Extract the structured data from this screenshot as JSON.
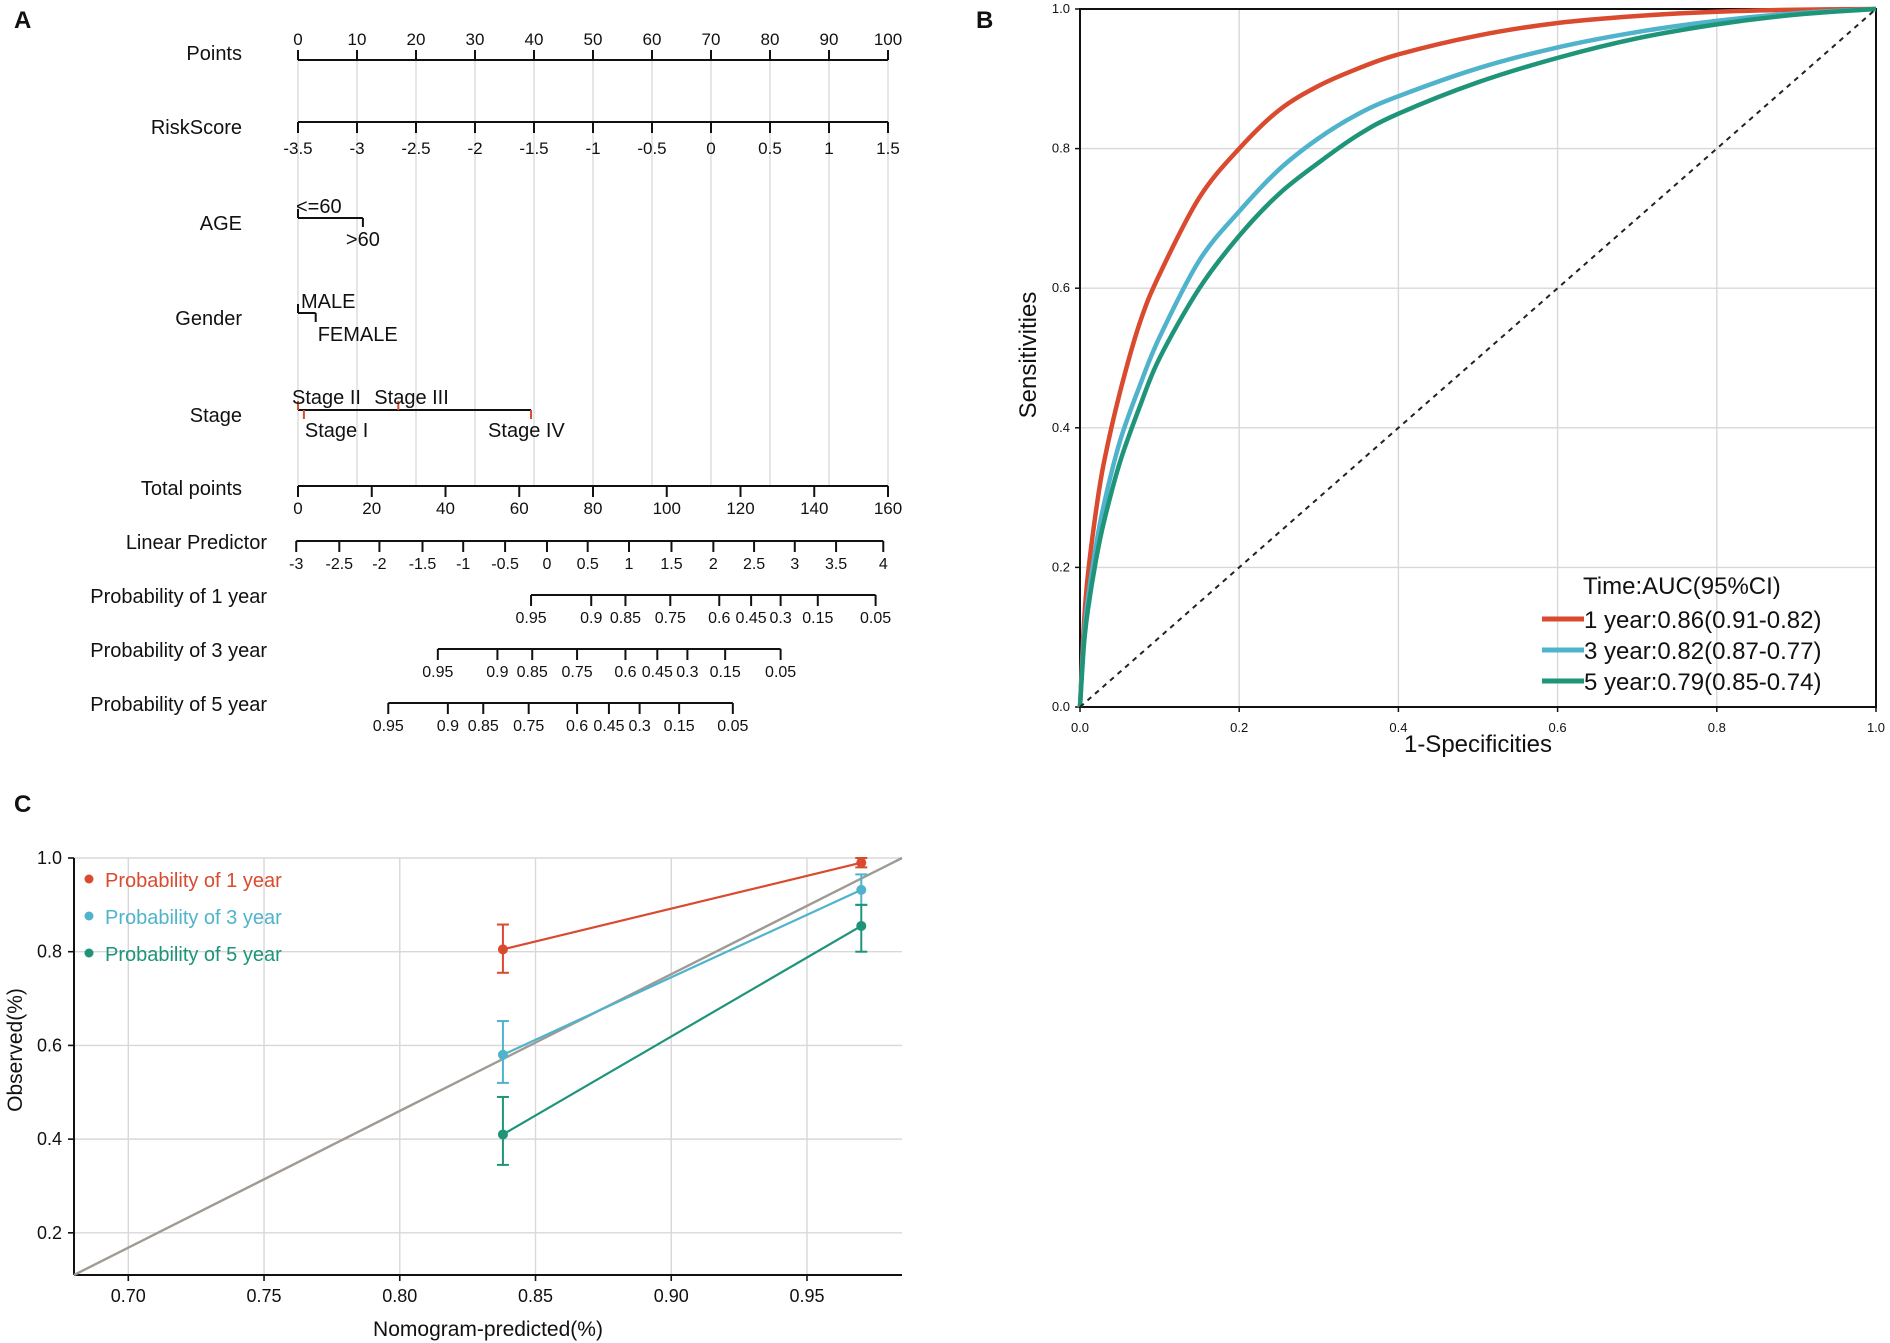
{
  "panel_letters": {
    "a": "A",
    "b": "B",
    "c": "C"
  },
  "colors": {
    "red": "#d94a2f",
    "blue": "#4fb3cc",
    "green": "#1e9479",
    "diag": "#a09a95",
    "grid": "#d8d8d8",
    "axis": "#111111"
  },
  "chart_data": [
    {
      "type": "nomogram",
      "panel": "A",
      "rows": [
        {
          "label": "Points",
          "ticks": [
            {
              "value": 0,
              "text": "0"
            },
            {
              "value": 10,
              "text": "10"
            },
            {
              "value": 20,
              "text": "20"
            },
            {
              "value": 30,
              "text": "30"
            },
            {
              "value": 40,
              "text": "40"
            },
            {
              "value": 50,
              "text": "50"
            },
            {
              "value": 60,
              "text": "60"
            },
            {
              "value": 70,
              "text": "70"
            },
            {
              "value": 80,
              "text": "80"
            },
            {
              "value": 90,
              "text": "90"
            },
            {
              "value": 100,
              "text": "100"
            }
          ]
        },
        {
          "label": "RiskScore",
          "ticks": [
            {
              "points": 0,
              "text": "-3.5"
            },
            {
              "points": 10,
              "text": "-3"
            },
            {
              "points": 20,
              "text": "-2.5"
            },
            {
              "points": 30,
              "text": "-2"
            },
            {
              "points": 40,
              "text": "-1.5"
            },
            {
              "points": 50,
              "text": "-1"
            },
            {
              "points": 60,
              "text": "-0.5"
            },
            {
              "points": 70,
              "text": "0"
            },
            {
              "points": 80,
              "text": "0.5"
            },
            {
              "points": 90,
              "text": "1"
            },
            {
              "points": 100,
              "text": "1.5"
            }
          ]
        },
        {
          "label": "AGE",
          "levels": [
            {
              "text": "<=60",
              "points": 0
            },
            {
              "text": ">60",
              "points": 11
            }
          ]
        },
        {
          "label": "Gender",
          "levels": [
            {
              "text": "MALE",
              "points": 0
            },
            {
              "text": "FEMALE",
              "points": 3
            }
          ]
        },
        {
          "label": "Stage",
          "levels": [
            {
              "text": "Stage II",
              "points": 0
            },
            {
              "text": "Stage I",
              "points": 1
            },
            {
              "text": "Stage III",
              "points": 17
            },
            {
              "text": "Stage IV",
              "points": 39.5
            }
          ]
        },
        {
          "label": "Total points",
          "ticks": [
            {
              "value": 0,
              "text": "0"
            },
            {
              "value": 20,
              "text": "20"
            },
            {
              "value": 40,
              "text": "40"
            },
            {
              "value": 60,
              "text": "60"
            },
            {
              "value": 80,
              "text": "80"
            },
            {
              "value": 100,
              "text": "100"
            },
            {
              "value": 120,
              "text": "120"
            },
            {
              "value": 140,
              "text": "140"
            },
            {
              "value": 160,
              "text": "160"
            }
          ]
        },
        {
          "label": "Linear Predictor",
          "ticks": [
            {
              "points": -0.3,
              "text": "-3"
            },
            {
              "points": 7.0,
              "text": "-2.5"
            },
            {
              "points": 13.8,
              "text": "-2"
            },
            {
              "points": 21.1,
              "text": "-1.5"
            },
            {
              "points": 28.0,
              "text": "-1"
            },
            {
              "points": 35.1,
              "text": "-0.5"
            },
            {
              "points": 42.2,
              "text": "0"
            },
            {
              "points": 49.1,
              "text": "0.5"
            },
            {
              "points": 56.1,
              "text": "1"
            },
            {
              "points": 63.3,
              "text": "1.5"
            },
            {
              "points": 70.4,
              "text": "2"
            },
            {
              "points": 77.3,
              "text": "2.5"
            },
            {
              "points": 84.2,
              "text": "3"
            },
            {
              "points": 91.2,
              "text": "3.5"
            },
            {
              "points": 99.2,
              "text": "4"
            }
          ]
        },
        {
          "label": "Probability of 1 year",
          "ticks": [
            {
              "points": 39.5,
              "text": "0.95"
            },
            {
              "points": 49.7,
              "text": "0.9"
            },
            {
              "points": 55.5,
              "text": "0.85"
            },
            {
              "points": 63.1,
              "text": "0.75"
            },
            {
              "points": 71.4,
              "text": "0.6"
            },
            {
              "points": 76.8,
              "text": "0.45"
            },
            {
              "points": 81.8,
              "text": "0.3"
            },
            {
              "points": 88.1,
              "text": "0.15"
            },
            {
              "points": 97.9,
              "text": "0.05"
            }
          ]
        },
        {
          "label": "Probability of 3 year",
          "ticks": [
            {
              "points": 23.7,
              "text": "0.95"
            },
            {
              "points": 33.8,
              "text": "0.9"
            },
            {
              "points": 39.7,
              "text": "0.85"
            },
            {
              "points": 47.3,
              "text": "0.75"
            },
            {
              "points": 55.5,
              "text": "0.6"
            },
            {
              "points": 60.9,
              "text": "0.45"
            },
            {
              "points": 66.0,
              "text": "0.3"
            },
            {
              "points": 72.4,
              "text": "0.15"
            },
            {
              "points": 81.8,
              "text": "0.05"
            }
          ]
        },
        {
          "label": "Probability of 5 year",
          "ticks": [
            {
              "points": 15.3,
              "text": "0.95"
            },
            {
              "points": 25.4,
              "text": "0.9"
            },
            {
              "points": 31.4,
              "text": "0.85"
            },
            {
              "points": 39.1,
              "text": "0.75"
            },
            {
              "points": 47.3,
              "text": "0.6"
            },
            {
              "points": 52.7,
              "text": "0.45"
            },
            {
              "points": 57.9,
              "text": "0.3"
            },
            {
              "points": 64.6,
              "text": "0.15"
            },
            {
              "points": 73.7,
              "text": "0.05"
            }
          ]
        }
      ]
    },
    {
      "type": "line",
      "panel": "B",
      "title": "",
      "xlabel": "1-Specificities",
      "ylabel": "Sensitivities",
      "xlim": [
        0,
        1
      ],
      "ylim": [
        0,
        1
      ],
      "ticks": [
        {
          "value": 0,
          "text": "0.0"
        },
        {
          "value": 0.2,
          "text": "0.2"
        },
        {
          "value": 0.4,
          "text": "0.4"
        },
        {
          "value": 0.6,
          "text": "0.6"
        },
        {
          "value": 0.8,
          "text": "0.8"
        },
        {
          "value": 1,
          "text": "1.0"
        }
      ],
      "grid": true,
      "legend_title": "Time:AUC(95%CI)",
      "legend_position": "bottom-right",
      "x": [
        0,
        0.005,
        0.01,
        0.02,
        0.03,
        0.05,
        0.075,
        0.1,
        0.15,
        0.2,
        0.25,
        0.3,
        0.35,
        0.4,
        0.5,
        0.6,
        0.7,
        0.8,
        0.9,
        1.0
      ],
      "series": [
        {
          "name": "1 year:0.86(0.91-0.82)",
          "color": "red",
          "values": [
            0,
            0.12,
            0.19,
            0.28,
            0.35,
            0.45,
            0.55,
            0.62,
            0.73,
            0.8,
            0.855,
            0.89,
            0.915,
            0.935,
            0.962,
            0.98,
            0.99,
            0.996,
            0.999,
            1.0
          ]
        },
        {
          "name": "3 year:0.82(0.87-0.77)",
          "color": "blue",
          "values": [
            0,
            0.1,
            0.155,
            0.23,
            0.29,
            0.38,
            0.46,
            0.53,
            0.64,
            0.71,
            0.77,
            0.815,
            0.85,
            0.875,
            0.915,
            0.945,
            0.967,
            0.983,
            0.994,
            1.0
          ]
        },
        {
          "name": "5 year:0.79(0.85-0.74)",
          "color": "green",
          "values": [
            0,
            0.09,
            0.14,
            0.21,
            0.265,
            0.35,
            0.43,
            0.5,
            0.6,
            0.675,
            0.735,
            0.78,
            0.82,
            0.85,
            0.895,
            0.93,
            0.958,
            0.978,
            0.992,
            1.0
          ]
        },
        {
          "name": "reference",
          "color": "dashed",
          "values": [
            0,
            0.005,
            0.01,
            0.02,
            0.03,
            0.05,
            0.075,
            0.1,
            0.15,
            0.2,
            0.25,
            0.3,
            0.35,
            0.4,
            0.5,
            0.6,
            0.7,
            0.8,
            0.9,
            1.0
          ]
        }
      ]
    },
    {
      "type": "line",
      "panel": "C",
      "title": "",
      "xlabel": "Nomogram-predicted(%)",
      "ylabel": "Observed(%)",
      "xlim": [
        0.68,
        0.985
      ],
      "ylim": [
        0.11,
        1.0
      ],
      "xticks": [
        {
          "value": 0.7,
          "text": "0.70"
        },
        {
          "value": 0.75,
          "text": "0.75"
        },
        {
          "value": 0.8,
          "text": "0.80"
        },
        {
          "value": 0.85,
          "text": "0.85"
        },
        {
          "value": 0.9,
          "text": "0.90"
        },
        {
          "value": 0.95,
          "text": "0.95"
        }
      ],
      "yticks": [
        {
          "value": 0.2,
          "text": "0.2"
        },
        {
          "value": 0.4,
          "text": "0.4"
        },
        {
          "value": 0.6,
          "text": "0.6"
        },
        {
          "value": 0.8,
          "text": "0.8"
        },
        {
          "value": 1.0,
          "text": "1.0"
        }
      ],
      "grid": true,
      "legend_position": "top-left",
      "diagonal": {
        "from": [
          0.68,
          0.11
        ],
        "to": [
          0.985,
          1.0
        ]
      },
      "series": [
        {
          "name": "Probability of 1 year",
          "color": "red",
          "x": [
            0.838,
            0.97
          ],
          "y": [
            0.805,
            0.99
          ],
          "lower": [
            0.755,
            0.98
          ],
          "upper": [
            0.858,
            1.0
          ]
        },
        {
          "name": "Probability of 3 year",
          "color": "blue",
          "x": [
            0.838,
            0.97
          ],
          "y": [
            0.58,
            0.932
          ],
          "lower": [
            0.52,
            0.9
          ],
          "upper": [
            0.652,
            0.965
          ]
        },
        {
          "name": "Probability of 5 year",
          "color": "green",
          "x": [
            0.838,
            0.97
          ],
          "y": [
            0.41,
            0.855
          ],
          "lower": [
            0.345,
            0.8
          ],
          "upper": [
            0.49,
            0.9
          ]
        }
      ]
    }
  ]
}
